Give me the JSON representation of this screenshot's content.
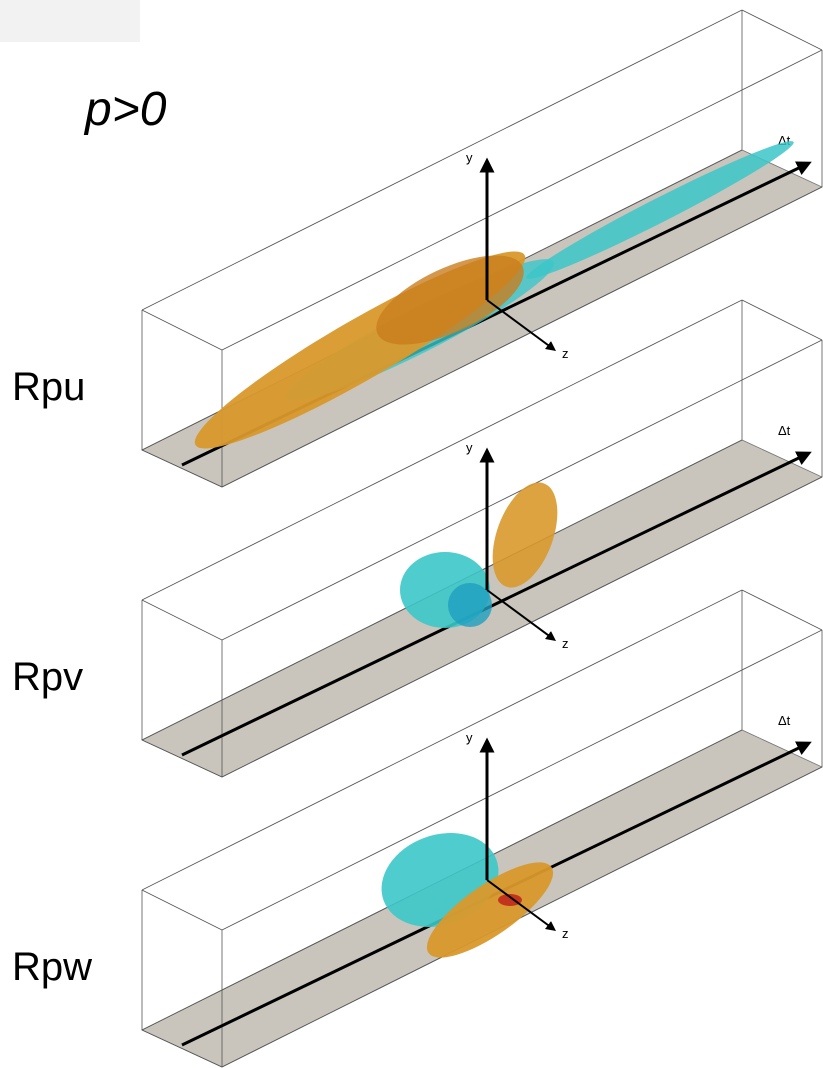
{
  "title": "p>0",
  "panels": [
    {
      "label": "Rpu",
      "axes": {
        "y": "y",
        "z": "z",
        "t": "Δt"
      }
    },
    {
      "label": "Rpv",
      "axes": {
        "y": "y",
        "z": "z",
        "t": "Δt"
      }
    },
    {
      "label": "Rpw",
      "axes": {
        "y": "y",
        "z": "z",
        "t": "Δt"
      }
    }
  ]
}
